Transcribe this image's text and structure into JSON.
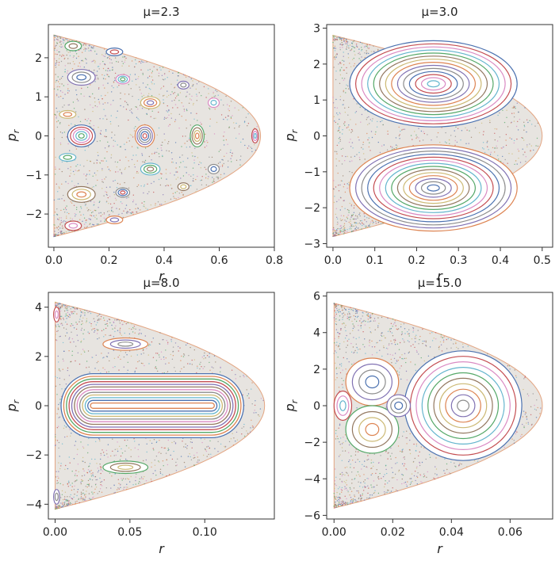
{
  "colors": [
    "#4c72b0",
    "#dd8452",
    "#55a868",
    "#c44e52",
    "#8172b3",
    "#937860",
    "#da8bc3",
    "#8c8c8c",
    "#ccb974",
    "#64b5cd"
  ],
  "chart_data": [
    {
      "type": "scatter",
      "title": "μ=2.3",
      "xlabel": "r",
      "ylabel": "p_r",
      "xlim": [
        -0.02,
        0.8
      ],
      "ylim": [
        -2.85,
        2.85
      ],
      "x_ticks": [
        0.0,
        0.2,
        0.4,
        0.6,
        0.8
      ],
      "x_tick_labels": [
        "0.0",
        "0.2",
        "0.4",
        "0.6",
        "0.8"
      ],
      "y_ticks": [
        -2,
        -1,
        0,
        1,
        2
      ],
      "y_tick_labels": [
        "−2",
        "−1",
        "0",
        "1",
        "2"
      ],
      "boundary": {
        "r_max": 0.75,
        "p_max": 2.58
      },
      "islands": [
        {
          "x": 0.1,
          "y": 0.0,
          "rx": 0.05,
          "ry": 0.28,
          "rings": 5
        },
        {
          "x": 0.33,
          "y": 0.0,
          "rx": 0.035,
          "ry": 0.28,
          "rings": 5
        },
        {
          "x": 0.52,
          "y": 0.0,
          "rx": 0.025,
          "ry": 0.28,
          "rings": 4
        },
        {
          "x": 0.73,
          "y": 0.0,
          "rx": 0.012,
          "ry": 0.18,
          "rings": 3
        },
        {
          "x": 0.1,
          "y": 1.5,
          "rx": 0.05,
          "ry": 0.2,
          "rings": 3
        },
        {
          "x": 0.1,
          "y": -1.5,
          "rx": 0.05,
          "ry": 0.2,
          "rings": 3
        },
        {
          "x": 0.25,
          "y": 1.45,
          "rx": 0.025,
          "ry": 0.12,
          "rings": 3
        },
        {
          "x": 0.25,
          "y": -1.45,
          "rx": 0.025,
          "ry": 0.12,
          "rings": 3
        },
        {
          "x": 0.35,
          "y": 0.85,
          "rx": 0.035,
          "ry": 0.15,
          "rings": 3
        },
        {
          "x": 0.35,
          "y": -0.85,
          "rx": 0.035,
          "ry": 0.15,
          "rings": 3
        },
        {
          "x": 0.22,
          "y": 2.15,
          "rx": 0.03,
          "ry": 0.1,
          "rings": 2
        },
        {
          "x": 0.22,
          "y": -2.15,
          "rx": 0.03,
          "ry": 0.1,
          "rings": 2
        },
        {
          "x": 0.07,
          "y": 2.3,
          "rx": 0.03,
          "ry": 0.12,
          "rings": 2
        },
        {
          "x": 0.07,
          "y": -2.3,
          "rx": 0.03,
          "ry": 0.12,
          "rings": 2
        },
        {
          "x": 0.47,
          "y": 1.3,
          "rx": 0.02,
          "ry": 0.1,
          "rings": 2
        },
        {
          "x": 0.47,
          "y": -1.3,
          "rx": 0.02,
          "ry": 0.1,
          "rings": 2
        },
        {
          "x": 0.58,
          "y": 0.85,
          "rx": 0.02,
          "ry": 0.12,
          "rings": 2
        },
        {
          "x": 0.58,
          "y": -0.85,
          "rx": 0.02,
          "ry": 0.12,
          "rings": 2
        },
        {
          "x": 0.05,
          "y": 0.55,
          "rx": 0.03,
          "ry": 0.1,
          "rings": 2
        },
        {
          "x": 0.05,
          "y": -0.55,
          "rx": 0.03,
          "ry": 0.1,
          "rings": 2
        }
      ]
    },
    {
      "type": "scatter",
      "title": "μ=3.0",
      "xlabel": "r",
      "ylabel": "p_r",
      "xlim": [
        -0.015,
        0.525
      ],
      "ylim": [
        -3.1,
        3.1
      ],
      "x_ticks": [
        0.0,
        0.1,
        0.2,
        0.3,
        0.4,
        0.5
      ],
      "x_tick_labels": [
        "0.0",
        "0.1",
        "0.2",
        "0.3",
        "0.4",
        "0.5"
      ],
      "y_ticks": [
        -3,
        -2,
        -1,
        0,
        1,
        2,
        3
      ],
      "y_tick_labels": [
        "−3",
        "−2",
        "−1",
        "0",
        "1",
        "2",
        "3"
      ],
      "boundary": {
        "r_max": 0.5,
        "p_max": 2.8
      },
      "islands": [
        {
          "x": 0.24,
          "y": 1.45,
          "rx": 0.2,
          "ry": 1.2,
          "rings": 14
        },
        {
          "x": 0.24,
          "y": -1.45,
          "rx": 0.2,
          "ry": 1.2,
          "rings": 14
        }
      ]
    },
    {
      "type": "scatter",
      "title": "μ=8.0",
      "xlabel": "r",
      "ylabel": "p_r",
      "xlim": [
        -0.0045,
        0.1465
      ],
      "ylim": [
        -4.6,
        4.6
      ],
      "x_ticks": [
        0.0,
        0.05,
        0.1
      ],
      "x_tick_labels": [
        "0.00",
        "0.05",
        "0.10"
      ],
      "y_ticks": [
        -4,
        -2,
        0,
        2,
        4
      ],
      "y_tick_labels": [
        "−4",
        "−2",
        "0",
        "2",
        "4"
      ],
      "boundary": {
        "r_max": 0.14,
        "p_max": 4.2
      },
      "islands": [
        {
          "x": 0.065,
          "y": 0.0,
          "rx": 0.061,
          "ry": 1.3,
          "rings": 12,
          "shape": "stadium"
        },
        {
          "x": 0.047,
          "y": 2.5,
          "rx": 0.015,
          "ry": 0.25,
          "rings": 3
        },
        {
          "x": 0.047,
          "y": -2.5,
          "rx": 0.015,
          "ry": 0.25,
          "rings": 3
        },
        {
          "x": 0.001,
          "y": 3.7,
          "rx": 0.002,
          "ry": 0.3,
          "rings": 2
        },
        {
          "x": 0.001,
          "y": -3.7,
          "rx": 0.002,
          "ry": 0.3,
          "rings": 2
        }
      ]
    },
    {
      "type": "scatter",
      "title": "μ=15.0",
      "xlabel": "r",
      "ylabel": "p_r",
      "xlim": [
        -0.0025,
        0.0745
      ],
      "ylim": [
        -6.2,
        6.2
      ],
      "x_ticks": [
        0.0,
        0.02,
        0.04,
        0.06
      ],
      "x_tick_labels": [
        "0.00",
        "0.02",
        "0.04",
        "0.06"
      ],
      "y_ticks": [
        -6,
        -4,
        -2,
        0,
        2,
        4,
        6
      ],
      "y_tick_labels": [
        "−6",
        "−4",
        "−2",
        "0",
        "2",
        "4",
        "6"
      ],
      "boundary": {
        "r_max": 0.071,
        "p_max": 5.6
      },
      "islands": [
        {
          "x": 0.044,
          "y": 0.0,
          "rx": 0.02,
          "ry": 3.0,
          "rings": 10
        },
        {
          "x": 0.013,
          "y": 1.3,
          "rx": 0.009,
          "ry": 1.3,
          "rings": 4
        },
        {
          "x": 0.013,
          "y": -1.3,
          "rx": 0.009,
          "ry": 1.3,
          "rings": 4
        },
        {
          "x": 0.003,
          "y": 0.0,
          "rx": 0.003,
          "ry": 0.8,
          "rings": 3
        },
        {
          "x": 0.022,
          "y": 0.0,
          "rx": 0.004,
          "ry": 0.6,
          "rings": 3
        }
      ]
    }
  ]
}
